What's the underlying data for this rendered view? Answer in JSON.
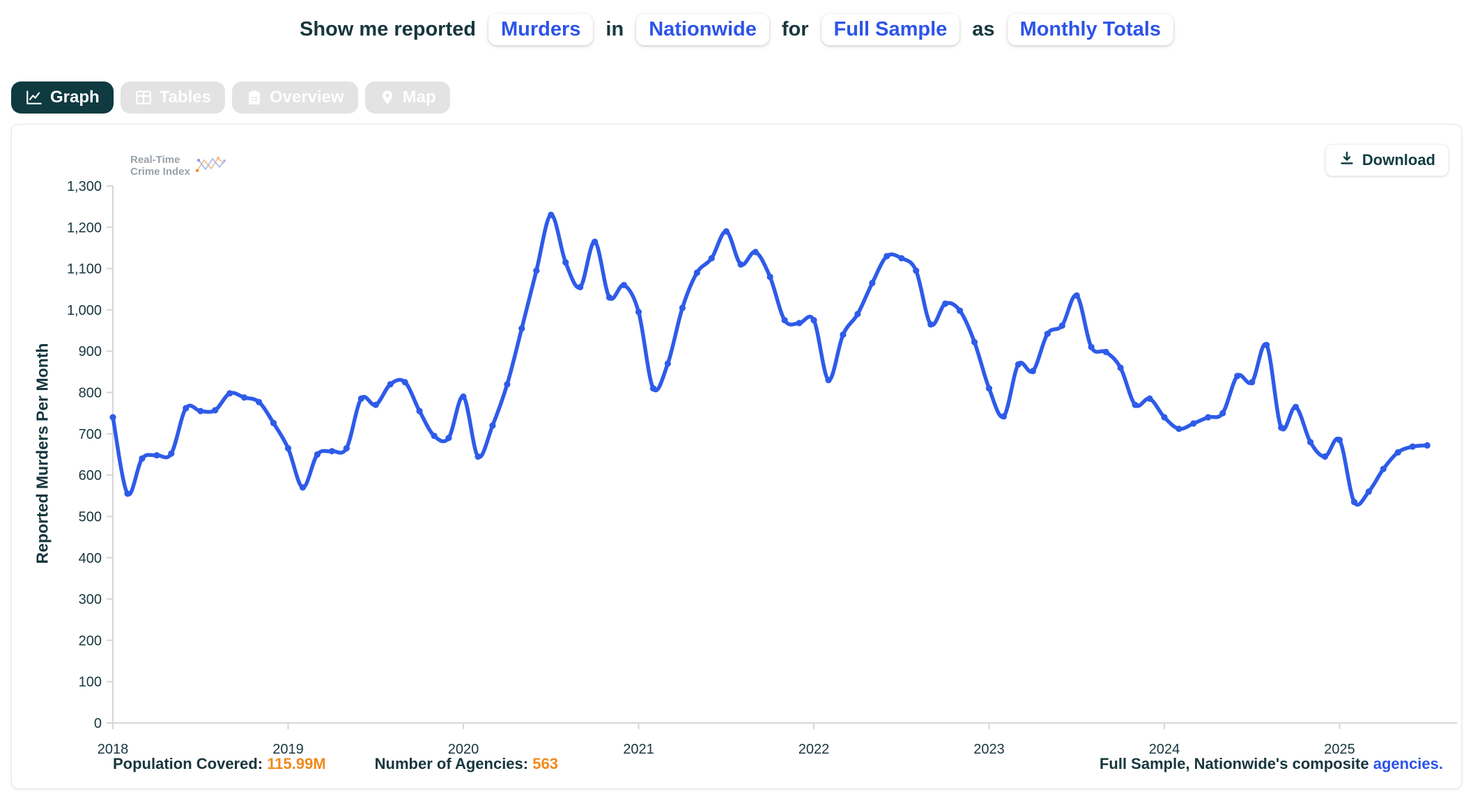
{
  "header": {
    "prefix": "Show me reported",
    "crime_type": "Murders",
    "word_in": "in",
    "place": "Nationwide",
    "word_for": "for",
    "sample": "Full Sample",
    "word_as": "as",
    "mode": "Monthly Totals"
  },
  "tabs": [
    {
      "label": "Graph",
      "active": true
    },
    {
      "label": "Tables",
      "active": false
    },
    {
      "label": "Overview",
      "active": false
    },
    {
      "label": "Map",
      "active": false
    }
  ],
  "logo": {
    "line1": "Real-Time",
    "line2": "Crime Index"
  },
  "download_label": "Download",
  "chart_data": {
    "type": "line",
    "ylabel": "Reported Murders Per Month",
    "ylim": [
      0,
      1300
    ],
    "ytick_step": 100,
    "grid": false,
    "legend_position": "none",
    "x_years": [
      2018,
      2019,
      2020,
      2021,
      2022,
      2023,
      2024,
      2025
    ],
    "x_start_month": "2018-01",
    "x_end_month": "2025-07",
    "series": [
      {
        "name": "Reported Murders",
        "color": "#2e5be8",
        "monthly_values": [
          740,
          555,
          640,
          648,
          652,
          762,
          755,
          757,
          798,
          788,
          777,
          726,
          665,
          570,
          650,
          658,
          665,
          785,
          770,
          820,
          825,
          755,
          695,
          690,
          790,
          645,
          720,
          820,
          955,
          1095,
          1230,
          1115,
          1055,
          1165,
          1030,
          1060,
          995,
          810,
          870,
          1005,
          1090,
          1125,
          1190,
          1110,
          1140,
          1080,
          975,
          968,
          975,
          830,
          940,
          990,
          1065,
          1130,
          1125,
          1095,
          965,
          1015,
          998,
          922,
          810,
          742,
          868,
          852,
          942,
          962,
          1035,
          910,
          898,
          860,
          770,
          785,
          740,
          712,
          725,
          740,
          750,
          840,
          825,
          915,
          715,
          765,
          680,
          645,
          685,
          535,
          560,
          615,
          655,
          669,
          672
        ]
      }
    ]
  },
  "footer": {
    "population_label": "Population Covered:",
    "population_value": "115.99M",
    "agencies_label": "Number of Agencies:",
    "agencies_value": "563",
    "note_prefix": "Full Sample, Nationwide's composite ",
    "note_link": "agencies."
  },
  "colors": {
    "line_blue": "#2e5be8",
    "link_blue": "#2d54e8",
    "dark_teal": "#17363e",
    "orange": "#f08a1c",
    "tab_active_bg": "#0e3a40",
    "tab_inactive_bg": "#e3e3e3",
    "axis_gray": "#d6d6d6"
  }
}
